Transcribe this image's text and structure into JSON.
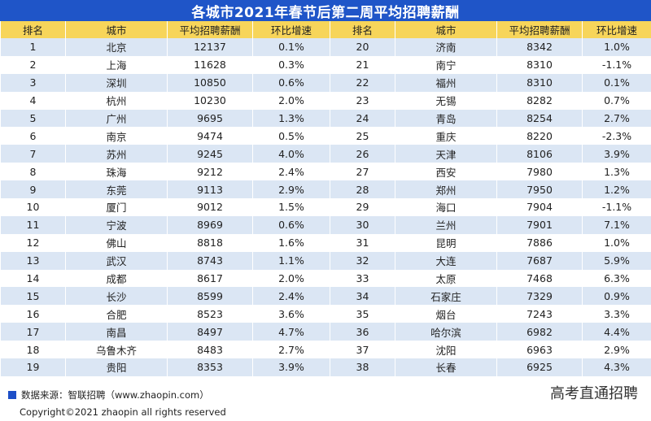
{
  "title": "各城市2021年春节后第二周平均招聘薪酬",
  "headers": [
    "排名",
    "城市",
    "平均招聘薪酬",
    "环比增速",
    "排名",
    "城市",
    "平均招聘薪酬",
    "环比增速"
  ],
  "chart_data": {
    "type": "table",
    "title": "各城市2021年春节后第二周平均招聘薪酬",
    "columns": [
      "排名",
      "城市",
      "平均招聘薪酬",
      "环比增速"
    ],
    "rows": [
      [
        "1",
        "北京",
        "12137",
        "0.1%"
      ],
      [
        "2",
        "上海",
        "11628",
        "0.3%"
      ],
      [
        "3",
        "深圳",
        "10850",
        "0.6%"
      ],
      [
        "4",
        "杭州",
        "10230",
        "2.0%"
      ],
      [
        "5",
        "广州",
        "9695",
        "1.3%"
      ],
      [
        "6",
        "南京",
        "9474",
        "0.5%"
      ],
      [
        "7",
        "苏州",
        "9245",
        "4.0%"
      ],
      [
        "8",
        "珠海",
        "9212",
        "2.4%"
      ],
      [
        "9",
        "东莞",
        "9113",
        "2.9%"
      ],
      [
        "10",
        "厦门",
        "9012",
        "1.5%"
      ],
      [
        "11",
        "宁波",
        "8969",
        "0.6%"
      ],
      [
        "12",
        "佛山",
        "8818",
        "1.6%"
      ],
      [
        "13",
        "武汉",
        "8743",
        "1.1%"
      ],
      [
        "14",
        "成都",
        "8617",
        "2.0%"
      ],
      [
        "15",
        "长沙",
        "8599",
        "2.4%"
      ],
      [
        "16",
        "合肥",
        "8523",
        "3.6%"
      ],
      [
        "17",
        "南昌",
        "8497",
        "4.7%"
      ],
      [
        "18",
        "乌鲁木齐",
        "8483",
        "2.7%"
      ],
      [
        "19",
        "贵阳",
        "8353",
        "3.9%"
      ],
      [
        "20",
        "济南",
        "8342",
        "1.0%"
      ],
      [
        "21",
        "南宁",
        "8310",
        "-1.1%"
      ],
      [
        "22",
        "福州",
        "8310",
        "0.1%"
      ],
      [
        "23",
        "无锡",
        "8282",
        "0.7%"
      ],
      [
        "24",
        "青岛",
        "8254",
        "2.7%"
      ],
      [
        "25",
        "重庆",
        "8220",
        "-2.3%"
      ],
      [
        "26",
        "天津",
        "8106",
        "3.9%"
      ],
      [
        "27",
        "西安",
        "7980",
        "1.3%"
      ],
      [
        "28",
        "郑州",
        "7950",
        "1.2%"
      ],
      [
        "29",
        "海口",
        "7904",
        "-1.1%"
      ],
      [
        "30",
        "兰州",
        "7901",
        "7.1%"
      ],
      [
        "31",
        "昆明",
        "7886",
        "1.0%"
      ],
      [
        "32",
        "大连",
        "7687",
        "5.9%"
      ],
      [
        "33",
        "太原",
        "7468",
        "6.3%"
      ],
      [
        "34",
        "石家庄",
        "7329",
        "0.9%"
      ],
      [
        "35",
        "烟台",
        "7243",
        "3.3%"
      ],
      [
        "36",
        "哈尔滨",
        "6982",
        "4.4%"
      ],
      [
        "37",
        "沈阳",
        "6963",
        "2.9%"
      ],
      [
        "38",
        "长春",
        "6925",
        "4.3%"
      ]
    ]
  },
  "source": "数据来源：智联招聘（www.zhaopin.com）",
  "copyright": "Copyright©2021 zhaopin all rights reserved",
  "watermark": "高考直通招聘",
  "colors": {
    "title_bg": "#1f55c8",
    "header_bg": "#f7d55a",
    "stripe": "#dbe6f4",
    "source_marker": "#1d4fc7"
  },
  "icons": {
    "source_marker": "blue-square-icon"
  }
}
